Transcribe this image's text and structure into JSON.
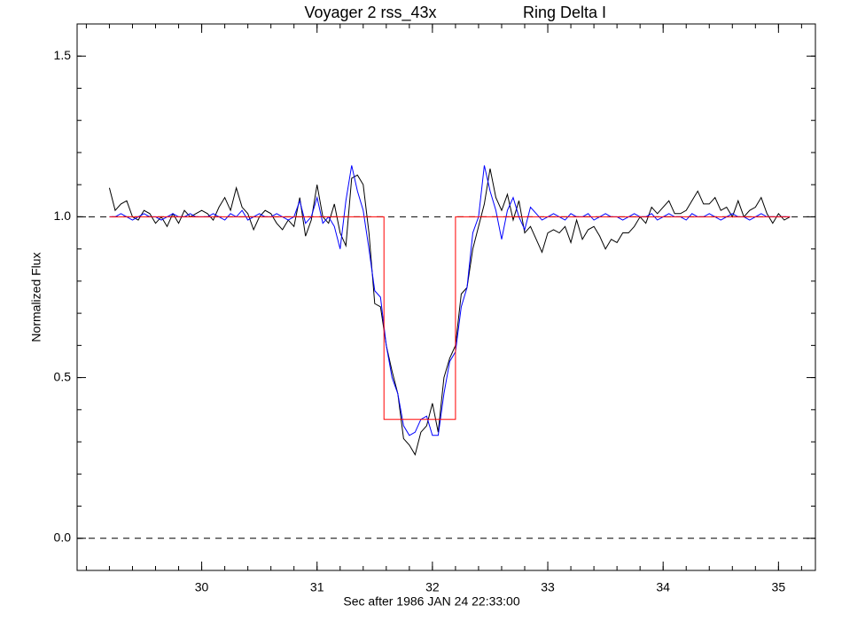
{
  "chart_data": {
    "type": "line",
    "title": "Voyager 2 rss_43x",
    "subtitle": "Ring Delta I",
    "xlabel": "Sec after 1986 JAN 24 22:33:00",
    "ylabel": "Normalized Flux",
    "xlim": [
      28.92,
      35.32
    ],
    "ylim": [
      -0.1,
      1.6
    ],
    "xticks": [
      30,
      31,
      32,
      33,
      34,
      35
    ],
    "yticks": [
      {
        "value": 0,
        "label": "0.0"
      },
      {
        "value": 0.5,
        "label": "0.5"
      },
      {
        "value": 1,
        "label": "1.0"
      },
      {
        "value": 1.5,
        "label": "1.5"
      }
    ],
    "minor_ticks": {
      "x": 0.2,
      "y": 0.1
    },
    "hlines": [
      1,
      0
    ],
    "x": [
      29.2,
      29.25,
      29.3,
      29.35,
      29.4,
      29.45,
      29.5,
      29.55,
      29.6,
      29.65,
      29.7,
      29.75,
      29.8,
      29.85,
      29.9,
      29.95,
      30.0,
      30.05,
      30.1,
      30.15,
      30.2,
      30.25,
      30.3,
      30.35,
      30.4,
      30.45,
      30.5,
      30.55,
      30.6,
      30.65,
      30.7,
      30.75,
      30.8,
      30.85,
      30.9,
      30.95,
      31.0,
      31.05,
      31.1,
      31.15,
      31.2,
      31.25,
      31.3,
      31.35,
      31.4,
      31.45,
      31.5,
      31.55,
      31.6,
      31.65,
      31.7,
      31.75,
      31.8,
      31.85,
      31.9,
      31.95,
      32.0,
      32.05,
      32.1,
      32.15,
      32.2,
      32.25,
      32.3,
      32.35,
      32.4,
      32.45,
      32.5,
      32.55,
      32.6,
      32.65,
      32.7,
      32.75,
      32.8,
      32.85,
      32.9,
      32.95,
      33.0,
      33.05,
      33.1,
      33.15,
      33.2,
      33.25,
      33.3,
      33.35,
      33.4,
      33.45,
      33.5,
      33.55,
      33.6,
      33.65,
      33.7,
      33.75,
      33.8,
      33.85,
      33.9,
      33.95,
      34.0,
      34.05,
      34.1,
      34.15,
      34.2,
      34.25,
      34.3,
      34.35,
      34.4,
      34.45,
      34.5,
      34.55,
      34.6,
      34.65,
      34.7,
      34.75,
      34.8,
      34.85,
      34.9,
      34.95,
      35.0,
      35.05,
      35.1
    ],
    "series": [
      {
        "color": "#000000",
        "values": [
          1.09,
          1.02,
          1.04,
          1.05,
          1.0,
          0.99,
          1.02,
          1.01,
          0.98,
          1.0,
          0.97,
          1.01,
          0.98,
          1.02,
          1.0,
          1.01,
          1.02,
          1.01,
          0.99,
          1.03,
          1.06,
          1.02,
          1.09,
          1.03,
          1.01,
          0.96,
          1.0,
          1.02,
          1.01,
          0.98,
          0.96,
          0.99,
          0.97,
          1.06,
          0.94,
          0.99,
          1.1,
          1.0,
          0.98,
          1.04,
          0.95,
          0.91,
          1.12,
          1.13,
          1.1,
          0.95,
          0.73,
          0.72,
          0.6,
          0.52,
          0.45,
          0.31,
          0.29,
          0.26,
          0.33,
          0.35,
          0.42,
          0.33,
          0.5,
          0.56,
          0.6,
          0.76,
          0.78,
          0.9,
          0.97,
          1.04,
          1.15,
          1.06,
          1.02,
          1.07,
          0.99,
          1.05,
          0.95,
          0.97,
          0.93,
          0.89,
          0.95,
          0.96,
          0.95,
          0.97,
          0.92,
          0.99,
          0.93,
          0.96,
          0.97,
          0.94,
          0.9,
          0.93,
          0.92,
          0.95,
          0.95,
          0.97,
          1.0,
          0.98,
          1.03,
          1.01,
          1.03,
          1.05,
          1.01,
          1.01,
          1.02,
          1.05,
          1.08,
          1.04,
          1.04,
          1.06,
          1.02,
          1.03,
          1.0,
          1.05,
          1.0,
          1.02,
          1.03,
          1.06,
          1.01,
          0.98,
          1.01,
          0.99,
          1.0
        ]
      },
      {
        "color": "#0000ff",
        "values": [
          1.0,
          1.0,
          1.01,
          1.0,
          0.99,
          1.0,
          1.01,
          1.0,
          1.0,
          0.99,
          1.0,
          1.01,
          1.0,
          1.0,
          1.01,
          1.0,
          1.0,
          1.0,
          1.01,
          1.0,
          0.99,
          1.01,
          1.0,
          1.02,
          0.99,
          1.0,
          1.01,
          1.0,
          1.0,
          1.01,
          1.0,
          0.99,
          1.0,
          1.05,
          0.98,
          1.0,
          1.06,
          0.98,
          1.0,
          0.97,
          0.9,
          1.05,
          1.16,
          1.08,
          1.02,
          0.9,
          0.77,
          0.75,
          0.6,
          0.5,
          0.45,
          0.35,
          0.32,
          0.33,
          0.37,
          0.38,
          0.32,
          0.32,
          0.45,
          0.55,
          0.58,
          0.72,
          0.78,
          0.95,
          1.0,
          1.16,
          1.08,
          1.02,
          0.93,
          1.02,
          1.06,
          1.0,
          0.96,
          1.03,
          1.01,
          0.99,
          1.0,
          1.01,
          1.0,
          0.99,
          1.01,
          1.0,
          1.0,
          1.01,
          0.99,
          1.0,
          1.01,
          1.0,
          1.0,
          0.99,
          1.0,
          1.01,
          1.0,
          1.0,
          1.01,
          0.99,
          1.0,
          1.01,
          1.0,
          1.0,
          0.99,
          1.01,
          1.0,
          1.0,
          1.01,
          1.0,
          0.99,
          1.0,
          1.01,
          1.0,
          1.0,
          0.99,
          1.0,
          1.01,
          1.0,
          1.0,
          1.0,
          1.0,
          1.0
        ]
      },
      {
        "color": "#ff0000",
        "x": [
          29.2,
          31.58,
          31.58,
          32.2,
          32.2,
          35.1
        ],
        "values": [
          1,
          1,
          0.37,
          0.37,
          1,
          1
        ]
      }
    ]
  }
}
